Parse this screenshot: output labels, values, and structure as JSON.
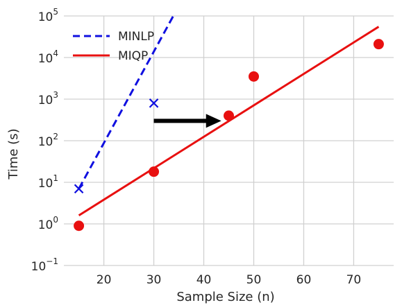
{
  "chart_data": {
    "type": "scatter",
    "xlabel": "Sample Size (n)",
    "ylabel": "Time (s)",
    "xlim": [
      12,
      78
    ],
    "ylim": [
      0.1,
      100000
    ],
    "yscale": "log",
    "grid": true,
    "x_ticks": [
      20,
      30,
      40,
      50,
      60,
      70
    ],
    "y_ticks": [
      {
        "value": 0.1,
        "base": "10",
        "exp": "−1"
      },
      {
        "value": 1,
        "base": "10",
        "exp": "0"
      },
      {
        "value": 10,
        "base": "10",
        "exp": "1"
      },
      {
        "value": 100,
        "base": "10",
        "exp": "2"
      },
      {
        "value": 1000,
        "base": "10",
        "exp": "3"
      },
      {
        "value": 10000,
        "base": "10",
        "exp": "4"
      },
      {
        "value": 100000,
        "base": "10",
        "exp": "5"
      }
    ],
    "legend_position": "top-left",
    "series": [
      {
        "name": "MINLP",
        "kind": "fit-line",
        "style": "dashed",
        "color": "#1010e0",
        "x": [
          15,
          33.9
        ],
        "y": [
          7,
          100000
        ]
      },
      {
        "name": "MINLP",
        "kind": "markers",
        "marker": "x",
        "color": "#1010e0",
        "x": [
          15,
          30
        ],
        "y": [
          7,
          800
        ]
      },
      {
        "name": "MIQP",
        "kind": "fit-line",
        "style": "solid",
        "color": "#e81010",
        "x": [
          15,
          75
        ],
        "y": [
          1.6,
          55000
        ]
      },
      {
        "name": "MIQP",
        "kind": "markers",
        "marker": "circle",
        "color": "#e81010",
        "x": [
          15,
          30,
          45,
          50,
          75
        ],
        "y": [
          0.9,
          18,
          400,
          3500,
          21000
        ]
      }
    ],
    "annotations": [
      {
        "type": "arrow",
        "color": "#000000",
        "x_from": 30,
        "x_to": 43.5,
        "y": 300
      }
    ]
  }
}
